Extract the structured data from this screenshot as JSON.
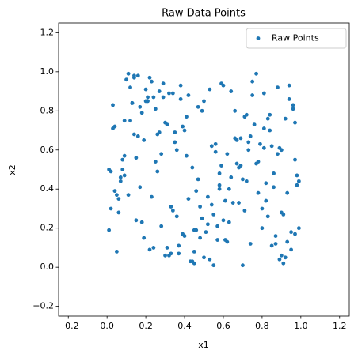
{
  "chart_data": {
    "type": "scatter",
    "title": "Raw Data Points",
    "x_label": "x1",
    "y_label": "x2",
    "xlim": [
      -0.25,
      1.25
    ],
    "ylim": [
      -0.25,
      1.25
    ],
    "xticks": [
      {
        "value": -0.2,
        "label": "−0.2"
      },
      {
        "value": 0,
        "label": "0.0"
      },
      0.2,
      0.4,
      0.6,
      0.8,
      {
        "value": 1,
        "label": "1.0"
      },
      1.2
    ],
    "yticks": [
      {
        "value": -0.2,
        "label": "−0.2"
      },
      {
        "value": 0,
        "label": "0.0"
      },
      0.2,
      0.4,
      0.6,
      0.8,
      {
        "value": 1,
        "label": "1.0"
      },
      1.2
    ],
    "legend": "upper right",
    "series": [
      {
        "name": "Raw Points",
        "color": "#1f77b4",
        "x": [
          0.03,
          0.87,
          0.42,
          0.61,
          0.15,
          0.94,
          0.28,
          0.73,
          0.5,
          0.09,
          0.66,
          0.34,
          0.81,
          0.22,
          0.57,
          0.98,
          0.12,
          0.45,
          0.77,
          0.38,
          0.05,
          0.69,
          0.91,
          0.26,
          0.53,
          0.18,
          0.84,
          0.4,
          0.62,
          0.96,
          0.31,
          0.07,
          0.75,
          0.48,
          0.14,
          0.89,
          0.59,
          0.24,
          0.83,
          0.36,
          0.01,
          0.71,
          0.46,
          0.93,
          0.2,
          0.64,
          0.11,
          0.55,
          0.79,
          0.33,
          0.97,
          0.27,
          0.68,
          0.04,
          0.51,
          0.86,
          0.17,
          0.43,
          0.74,
          0.29,
          0.6,
          0.08,
          0.92,
          0.37,
          0.81,
          0.23,
          0.56,
          0.99,
          0.13,
          0.47,
          0.7,
          0.35,
          0.02,
          0.88,
          0.58,
          0.19,
          0.76,
          0.41,
          0.95,
          0.25,
          0.63,
          0.1,
          0.52,
          0.85,
          0.3,
          0.72,
          0.06,
          0.44,
          0.9,
          0.16,
          0.67,
          0.39,
          0.82,
          0.21,
          0.54,
          0.97,
          0.32,
          0.78,
          0.12,
          0.49,
          0.86,
          0.03,
          0.61,
          0.27,
          0.93,
          0.45,
          0.18,
          0.73,
          0.38,
          0.57,
          0.09,
          0.8,
          0.5,
          0.24,
          0.66,
          0.99,
          0.14,
          0.42,
          0.87,
          0.31,
          0.75,
          0.05,
          0.58,
          0.35,
          0.91,
          0.2,
          0.69,
          0.46,
          0.83,
          0.11,
          0.53,
          0.28,
          0.96,
          0.62,
          0.07,
          0.4,
          0.77,
          0.15,
          0.89,
          0.34,
          0.65,
          0.01,
          0.48,
          0.84,
          0.23,
          0.71,
          0.37,
          0.94,
          0.17,
          0.56,
          0.8,
          0.3,
          0.08,
          0.64,
          0.44,
          0.98,
          0.26,
          0.74,
          0.13,
          0.52,
          0.9,
          0.36,
          0.59,
          0.04,
          0.81,
          0.22,
          0.67,
          0.47,
          0.95,
          0.19,
          0.72,
          0.1,
          0.55,
          0.33,
          0.88,
          0.41,
          0.02,
          0.63,
          0.29,
          0.85,
          0.16,
          0.78,
          0.49,
          0.92,
          0.25,
          0.6,
          0.06,
          0.7,
          0.39,
          0.97,
          0.21,
          0.54,
          0.82,
          0.14,
          0.45,
          0.68,
          0.32,
          0.9,
          0.58,
          0.09
        ],
        "values": [
          0.71,
          0.12,
          0.88,
          0.34,
          0.56,
          0.93,
          0.21,
          0.64,
          0.05,
          0.47,
          0.8,
          0.29,
          0.61,
          0.97,
          0.14,
          0.42,
          0.75,
          0.08,
          0.53,
          0.86,
          0.37,
          0.66,
          0.02,
          0.49,
          0.91,
          0.23,
          0.7,
          0.16,
          0.58,
          0.83,
          0.1,
          0.44,
          0.95,
          0.31,
          0.68,
          0.04,
          0.52,
          0.87,
          0.26,
          0.6,
          0.19,
          0.77,
          0.39,
          0.13,
          0.85,
          0.46,
          0.99,
          0.27,
          0.63,
          0.07,
          0.55,
          0.9,
          0.33,
          0.72,
          0.18,
          0.41,
          0.82,
          0.03,
          0.67,
          0.94,
          0.24,
          0.5,
          0.76,
          0.11,
          0.89,
          0.36,
          0.59,
          0.2,
          0.84,
          0.45,
          0.01,
          0.69,
          0.3,
          0.92,
          0.48,
          0.15,
          0.73,
          0.57,
          0.09,
          0.81,
          0.4,
          0.96,
          0.22,
          0.62,
          0.06,
          0.78,
          0.35,
          0.51,
          0.28,
          0.98,
          0.65,
          0.17,
          0.43,
          0.87,
          0.32,
          0.74,
          0.06,
          0.54,
          0.92,
          0.25,
          0.48,
          0.83,
          0.14,
          0.69,
          0.38,
          0.02,
          0.79,
          0.6,
          0.93,
          0.21,
          0.57,
          0.3,
          0.85,
          0.1,
          0.66,
          0.44,
          0.97,
          0.35,
          0.16,
          0.73,
          0.88,
          0.08,
          0.42,
          0.64,
          0.27,
          0.91,
          0.52,
          0.19,
          0.76,
          0.37,
          0.04,
          0.58,
          0.81,
          0.13,
          0.46,
          0.7,
          0.99,
          0.24,
          0.61,
          0.89,
          0.33,
          0.5,
          0.15,
          0.78,
          0.95,
          0.29,
          0.07,
          0.86,
          0.41,
          0.63,
          0.2,
          0.74,
          0.55,
          0.9,
          0.03,
          0.47,
          0.68,
          0.12,
          0.84,
          0.36,
          0.6,
          0.26,
          0.94,
          0.39,
          0.71,
          0.09,
          0.53,
          0.82,
          0.18,
          0.65,
          0.44,
          0.96,
          0.01,
          0.31,
          0.58,
          0.77,
          0.49,
          0.23,
          0.87,
          0.11,
          0.67,
          0.38,
          0.8,
          0.05,
          0.54,
          0.93,
          0.28,
          0.45,
          0.72,
          0.17,
          0.85,
          0.62,
          0.34,
          0.98,
          0.19,
          0.51,
          0.89,
          0.06,
          0.4,
          0.75
        ]
      }
    ]
  }
}
